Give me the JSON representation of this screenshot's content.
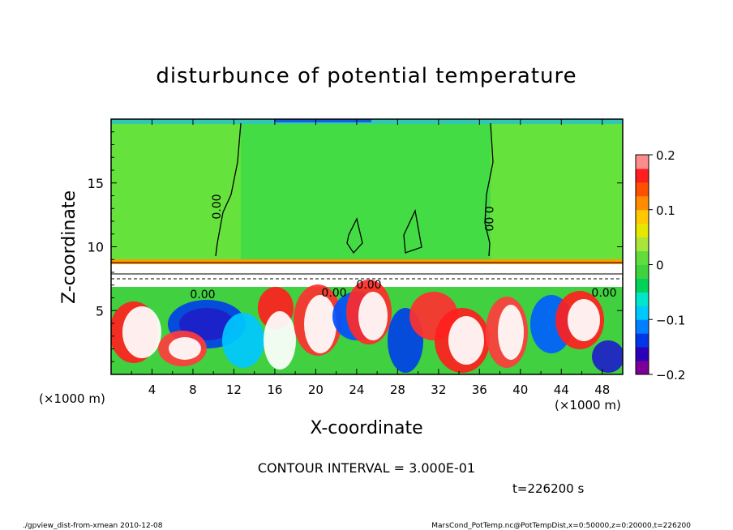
{
  "chart_data": {
    "type": "heatmap",
    "title": "disturbunce of potential temperature",
    "xlabel": "X-coordinate",
    "ylabel": "Z-coordinate",
    "x_unit_left": "(×1000 m)",
    "x_unit_right": "(×1000 m)",
    "x_unit_factor_left": "(×1000 m)",
    "xlim": [
      0,
      50
    ],
    "ylim": [
      0,
      20
    ],
    "xticks": [
      4,
      8,
      12,
      16,
      20,
      24,
      28,
      32,
      36,
      40,
      44,
      48
    ],
    "yticks": [
      5,
      10,
      15
    ],
    "colorbar": {
      "range": [
        -0.2,
        0.2
      ],
      "ticks": [
        0.2,
        0.1,
        0,
        -0.1,
        -0.2
      ],
      "tick_labels": [
        "0.2",
        "0.1",
        "0",
        "−0.1",
        "−0.2"
      ],
      "colors": [
        "#7b0099",
        "#2a00b8",
        "#0035e8",
        "#0080ff",
        "#00c8ff",
        "#00e6c8",
        "#00d25a",
        "#3ed23e",
        "#60dc3c",
        "#a8e63c",
        "#e6e600",
        "#ffc800",
        "#ff8c00",
        "#ff5000",
        "#ff1e1e",
        "#ff8c8c"
      ]
    },
    "contour_labels": [
      "0.00",
      "0.00",
      "0.00",
      "0.00",
      "0.00",
      "0.00"
    ],
    "contour_interval": "CONTOUR INTERVAL = 3.000E-01",
    "time": "t=226200 s"
  },
  "footer": {
    "left": "./gpview_dist-from-xmean  2010-12-08",
    "right": "MarsCond_PotTemp.nc@PotTempDist,x=0:50000,z=0:20000,t=226200"
  }
}
